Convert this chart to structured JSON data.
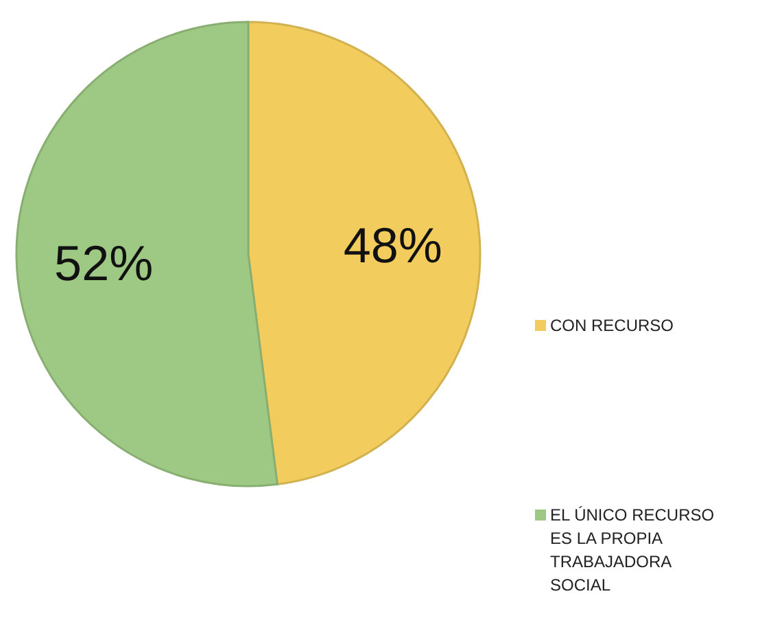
{
  "chart_data": {
    "type": "pie",
    "categories": [
      "CON RECURSO",
      "EL ÚNICO RECURSO ES LA PROPIA TRABAJADORA SOCIAL"
    ],
    "values": [
      48,
      52
    ],
    "colors": [
      "#f2cc5c",
      "#9ec984"
    ],
    "value_labels": [
      "48%",
      "52%"
    ],
    "legend": "right"
  }
}
